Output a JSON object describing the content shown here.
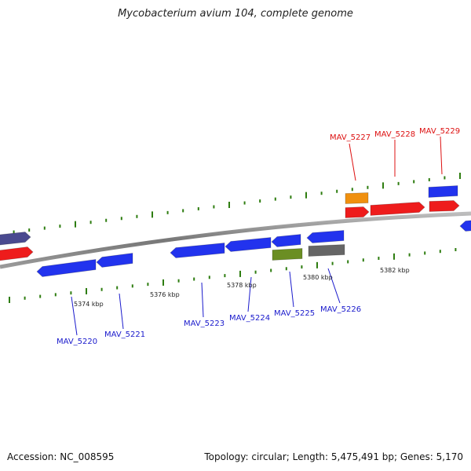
{
  "title": "Mycobacterium avium 104, complete genome",
  "footer": {
    "accession": "Accession: NC_008595",
    "summary": "Topology: circular; Length: 5,475,491 bp; Genes: 5,170"
  },
  "colors": {
    "forward_label": "#dd1111",
    "reverse_label": "#1a1acc",
    "backbone": "#8a8a8a",
    "tick": "#2e7d10"
  },
  "kbp_labels": [
    "5374 kbp",
    "5376 kbp",
    "5378 kbp",
    "5380 kbp",
    "5382 kbp"
  ],
  "genes": [
    {
      "name": "MAV_5220",
      "strand": "reverse",
      "color": "#2233ee"
    },
    {
      "name": "MAV_5221",
      "strand": "reverse",
      "color": "#2233ee"
    },
    {
      "name": "MAV_5223",
      "strand": "reverse",
      "color": "#2233ee"
    },
    {
      "name": "MAV_5224",
      "strand": "reverse",
      "color": "#2233ee"
    },
    {
      "name": "MAV_5225",
      "strand": "reverse",
      "color": "#6b8e23"
    },
    {
      "name": "MAV_5226",
      "strand": "reverse",
      "color": "#666666"
    },
    {
      "name": "MAV_5227",
      "strand": "forward",
      "color": "#ee1c1c"
    },
    {
      "name": "MAV_5228",
      "strand": "forward",
      "color": "#ee1c1c"
    },
    {
      "name": "MAV_5229",
      "strand": "forward",
      "color": "#ee1c1c"
    }
  ]
}
